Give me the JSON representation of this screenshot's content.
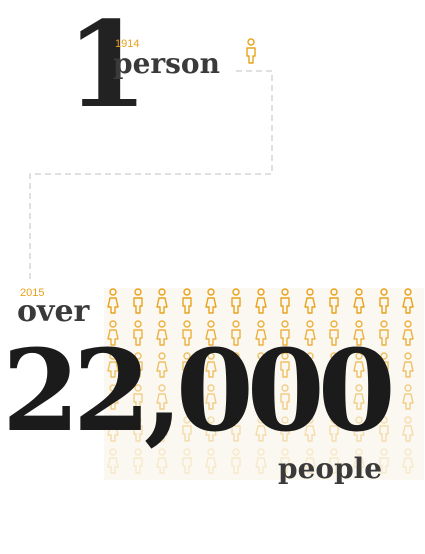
{
  "then": {
    "year": "1914",
    "count": "1",
    "unit": "person"
  },
  "now": {
    "year": "2015",
    "qualifier": "over",
    "count": "22,000",
    "unit": "people"
  },
  "icons": {
    "name": "person-icon",
    "color": "#e8a21b",
    "fade_color": "#ecd3a6",
    "grid_rows": 6,
    "grid_cols": 13
  },
  "colors": {
    "text": "#222222",
    "accent": "#e8a21b",
    "connector": "#d6d6d6"
  }
}
